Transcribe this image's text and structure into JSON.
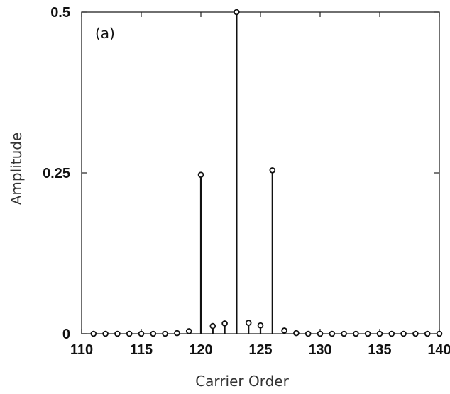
{
  "chart_data": {
    "type": "stem",
    "xlabel": "Carrier Order",
    "ylabel": "Amplitude",
    "annotation": "(a)",
    "xlim": [
      110,
      140
    ],
    "ylim": [
      0,
      0.5
    ],
    "xticks": [
      110,
      115,
      120,
      125,
      130,
      135,
      140
    ],
    "xtick_labels": [
      "110",
      "115",
      "120",
      "125",
      "130",
      "135",
      "140"
    ],
    "yticks": [
      0,
      0.25,
      0.5
    ],
    "ytick_labels": [
      "0",
      "0.25",
      "0.5"
    ],
    "grid": false,
    "colors": {
      "stem": "#111111",
      "axis": "#222222"
    },
    "x": [
      111,
      112,
      113,
      114,
      115,
      116,
      117,
      118,
      119,
      120,
      121,
      122,
      123,
      124,
      125,
      126,
      127,
      128,
      129,
      130,
      131,
      132,
      133,
      134,
      135,
      136,
      137,
      138,
      139,
      140
    ],
    "values": [
      0.0,
      0.0,
      0.0,
      0.0,
      0.0,
      0.0,
      0.0,
      0.001,
      0.004,
      0.247,
      0.012,
      0.016,
      0.5,
      0.017,
      0.013,
      0.254,
      0.005,
      0.001,
      0.0,
      0.0,
      0.0,
      0.0,
      0.0,
      0.0,
      0.0,
      0.0,
      0.0,
      0.0,
      0.0,
      0.0
    ]
  }
}
